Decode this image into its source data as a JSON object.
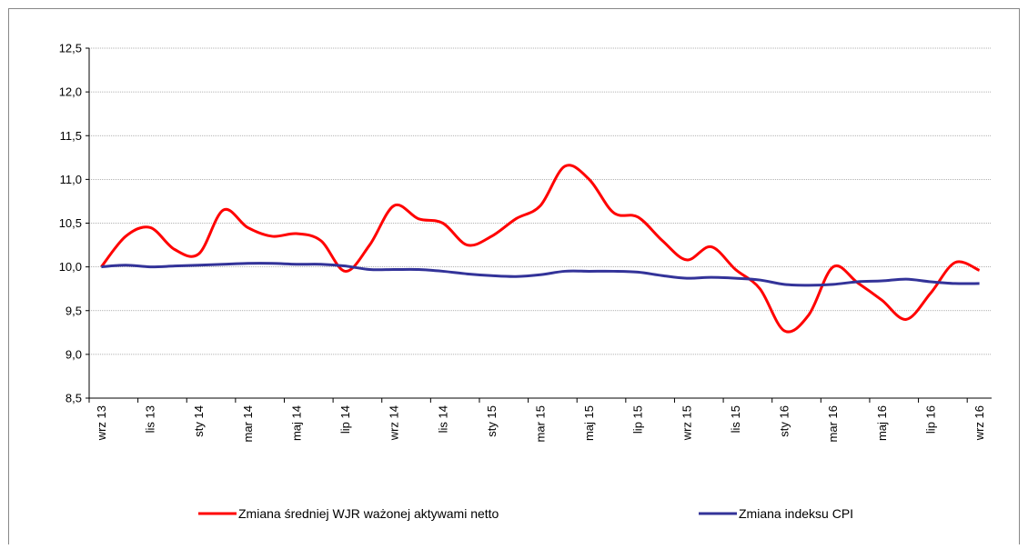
{
  "chart_data": {
    "type": "line",
    "categories": [
      "wrz 13",
      null,
      "lis 13",
      null,
      "sty 14",
      null,
      "mar 14",
      null,
      "maj 14",
      null,
      "lip 14",
      null,
      "wrz 14",
      null,
      "lis 14",
      null,
      "sty 15",
      null,
      "mar 15",
      null,
      "maj 15",
      null,
      "lip 15",
      null,
      "wrz 15",
      null,
      "lis 15",
      null,
      "sty 16",
      null,
      "mar 16",
      null,
      "maj 16",
      null,
      "lip 16",
      null,
      "wrz 16"
    ],
    "series": [
      {
        "name": "Zmiana średniej WJR ważonej aktywami netto",
        "color": "#ff0000",
        "values": [
          10.0,
          10.35,
          10.45,
          10.2,
          10.15,
          10.65,
          10.45,
          10.35,
          10.38,
          10.3,
          9.95,
          10.25,
          10.7,
          10.55,
          10.5,
          10.25,
          10.35,
          10.55,
          10.7,
          11.15,
          11.0,
          10.62,
          10.57,
          10.3,
          10.08,
          10.23,
          9.97,
          9.75,
          9.27,
          9.45,
          10.0,
          9.82,
          9.62,
          9.4,
          9.7,
          10.05,
          9.96
        ]
      },
      {
        "name": "Zmiana indeksu CPI",
        "color": "#333399",
        "values": [
          10.0,
          10.02,
          10.0,
          10.01,
          10.02,
          10.03,
          10.04,
          10.04,
          10.03,
          10.03,
          10.01,
          9.97,
          9.97,
          9.97,
          9.95,
          9.92,
          9.9,
          9.89,
          9.91,
          9.95,
          9.95,
          9.95,
          9.94,
          9.9,
          9.87,
          9.88,
          9.87,
          9.85,
          9.8,
          9.79,
          9.8,
          9.83,
          9.84,
          9.86,
          9.83,
          9.81,
          9.81
        ]
      }
    ],
    "ylim": [
      8.5,
      12.5
    ],
    "yticks": [
      {
        "value": 8.5,
        "label": "8,5"
      },
      {
        "value": 9.0,
        "label": "9,0"
      },
      {
        "value": 9.5,
        "label": "9,5"
      },
      {
        "value": 10.0,
        "label": "10,0"
      },
      {
        "value": 10.5,
        "label": "10,5"
      },
      {
        "value": 11.0,
        "label": "11,0"
      },
      {
        "value": 11.5,
        "label": "11,5"
      },
      {
        "value": 12.0,
        "label": "12,0"
      },
      {
        "value": 12.5,
        "label": "12,5"
      }
    ],
    "grid": true
  }
}
